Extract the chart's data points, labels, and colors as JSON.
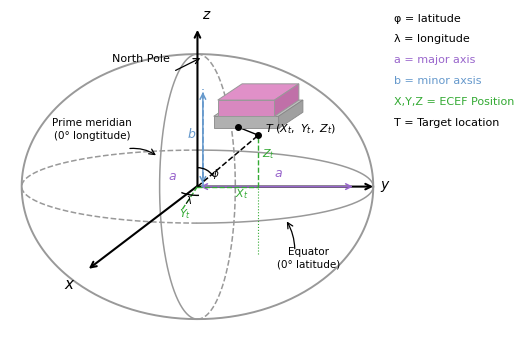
{
  "background_color": "#ffffff",
  "sphere_gray": "#999999",
  "sphere_lw": 1.4,
  "a_major_color": "#9966cc",
  "b_minor_color": "#6699cc",
  "green_color": "#33aa33",
  "legend_phi": "φ = latitude",
  "legend_lambda": "λ = longitude",
  "legend_a": "a = major axis",
  "legend_b": "b = minor axsis",
  "legend_xyz": "X,Y,Z = ECEF Position",
  "legend_t": "T = Target location",
  "legend_a_color": "#9966cc",
  "legend_b_color": "#6699cc",
  "legend_xyz_color": "#33aa33",
  "legend_t_color": "#000000",
  "legend_phi_color": "#000000",
  "legend_lambda_color": "#000000",
  "north_pole_label": "North Pole",
  "prime_meridian_label": "Prime meridian\n(0° longtitude)",
  "equator_label": "Equator\n(0° latitude)",
  "figsize": [
    5.3,
    3.46
  ],
  "dpi": 100
}
